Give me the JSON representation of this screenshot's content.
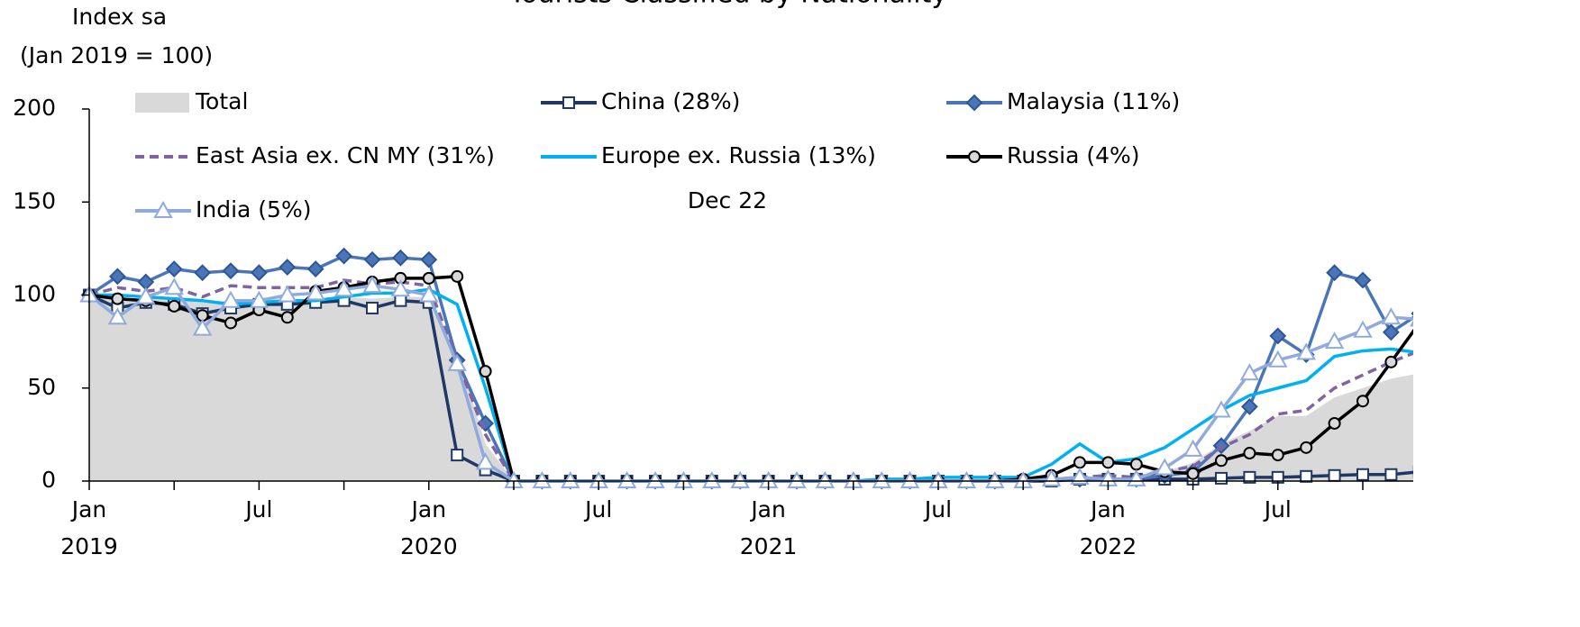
{
  "chart_data": {
    "type": "line",
    "title": "Tourists Classified by Nationality",
    "y_axis_label": [
      "Index sa",
      "(Jan 2019 = 100)"
    ],
    "annotation": "Dec 22",
    "categories": [
      "Jan",
      null,
      null,
      null,
      null,
      null,
      "Jul",
      null,
      null,
      null,
      null,
      null,
      "Jan",
      null,
      null,
      null,
      null,
      null,
      "Jul",
      null,
      null,
      null,
      null,
      null,
      "Jan",
      null,
      null,
      null,
      null,
      null,
      "Jul",
      null,
      null,
      null,
      null,
      null,
      "Jan",
      null,
      null,
      null,
      null,
      null,
      "Jul",
      null,
      null,
      null,
      null,
      null
    ],
    "year_labels": [
      "2019",
      "2020",
      "2021",
      "2022"
    ],
    "ylim": [
      0,
      200
    ],
    "yticks": [
      0,
      50,
      100,
      150,
      200
    ],
    "series": [
      {
        "name": "Total",
        "color": "#d9d9d9",
        "style": "area",
        "values": [
          100,
          97,
          98,
          99,
          96,
          97,
          97,
          98,
          98,
          99,
          98,
          99,
          99,
          70,
          20,
          0,
          0,
          0,
          0,
          0,
          0,
          0,
          0,
          0,
          0,
          0,
          0,
          0,
          0,
          0,
          0,
          0,
          0,
          0,
          0,
          1,
          2,
          2,
          5,
          10,
          20,
          27,
          35,
          35,
          45,
          50,
          55,
          58
        ]
      },
      {
        "name": "China (28%)",
        "color": "#1f3864",
        "marker": "square",
        "values": [
          100,
          93,
          96,
          95,
          90,
          93,
          95,
          95,
          96,
          97,
          93,
          97,
          96,
          14,
          6,
          0,
          0,
          0,
          0,
          0,
          0,
          0,
          0,
          0,
          0,
          0,
          0,
          0,
          0,
          0,
          0,
          0,
          0,
          0,
          0,
          1,
          1,
          1,
          1,
          1,
          1.5,
          2,
          2,
          2.5,
          3,
          3.5,
          3.5,
          5
        ]
      },
      {
        "name": "Malaysia (11%)",
        "color": "#4a76b8",
        "marker": "diamond",
        "values": [
          100,
          110,
          107,
          114,
          112,
          113,
          112,
          115,
          114,
          121,
          119,
          120,
          119,
          65,
          31,
          0,
          0,
          0,
          0,
          0,
          0,
          0,
          0,
          0,
          0,
          0,
          0,
          0,
          0,
          0,
          0,
          0,
          0,
          0,
          1,
          1,
          1,
          1,
          3,
          5,
          19,
          40,
          78,
          68,
          112,
          108,
          80,
          90
        ]
      },
      {
        "name": "East Asia ex. CN MY (31%)",
        "color": "#8064a2",
        "dash": true,
        "values": [
          100,
          104,
          102,
          104,
          99,
          105,
          104,
          104,
          104,
          108,
          106,
          107,
          105,
          65,
          25,
          0,
          0,
          0,
          0,
          0,
          0,
          0,
          0,
          0,
          0,
          0,
          0,
          0,
          0,
          0,
          0,
          0,
          0,
          0,
          1,
          2,
          3,
          2,
          5,
          8,
          18,
          25,
          36,
          38,
          50,
          57,
          64,
          70
        ]
      },
      {
        "name": "Europe ex. Russia (13%)",
        "color": "#00b0f0",
        "values": [
          100,
          100,
          99,
          98,
          97,
          95,
          96,
          97,
          97,
          99,
          101,
          101,
          103,
          95,
          50,
          0,
          0,
          0,
          0,
          0,
          0,
          0,
          0,
          0,
          0,
          0,
          0,
          0,
          1,
          1,
          2,
          2,
          2,
          2,
          9,
          20,
          10,
          12,
          18,
          28,
          38,
          46,
          50,
          54,
          67,
          70,
          71,
          69
        ]
      },
      {
        "name": "Russia (4%)",
        "color": "#000000",
        "marker": "circle",
        "values": [
          100,
          98,
          97,
          94,
          89,
          85,
          92,
          88,
          102,
          104,
          107,
          109,
          109,
          110,
          59,
          0,
          0,
          0,
          0,
          0,
          0,
          0,
          0,
          0,
          0,
          0,
          0,
          0,
          0,
          0,
          0,
          0,
          0,
          1,
          3,
          10,
          10,
          9,
          5,
          4,
          11,
          15,
          14,
          18,
          31,
          43,
          64,
          85
        ]
      },
      {
        "name": "India (5%)",
        "color": "#8faadc",
        "marker": "triangle",
        "values": [
          100,
          88,
          99,
          104,
          82,
          97,
          97,
          100,
          101,
          103,
          105,
          103,
          100,
          63,
          10,
          0,
          0,
          0,
          0,
          0,
          0,
          0,
          0,
          0,
          0,
          0,
          0,
          0,
          0,
          0,
          0,
          0,
          0,
          0,
          1,
          2,
          1,
          1,
          7,
          17,
          38,
          58,
          65,
          69,
          75,
          81,
          88,
          87
        ]
      }
    ]
  }
}
